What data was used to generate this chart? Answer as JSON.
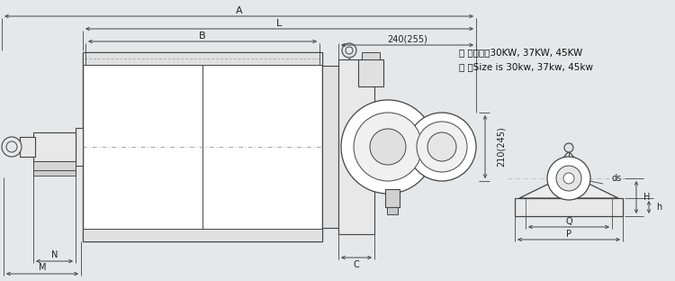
{
  "bg_color": "#e5e7e9",
  "line_color": "#444444",
  "text_color": "#222222",
  "note_line1": "（ ）尺寸䌀30KW, 37KW, 45KW",
  "note_line2": "（ ）Size is 30kw, 37kw, 45kw",
  "dim_A": "A",
  "dim_L": "L",
  "dim_B": "B",
  "dim_240": "240(255)",
  "dim_210": "210(245)",
  "dim_C": "C",
  "dim_N": "N",
  "dim_M": "M",
  "dim_ds": "ds",
  "dim_H": "H",
  "dim_h": "h",
  "dim_Q": "Q",
  "dim_P": "P"
}
